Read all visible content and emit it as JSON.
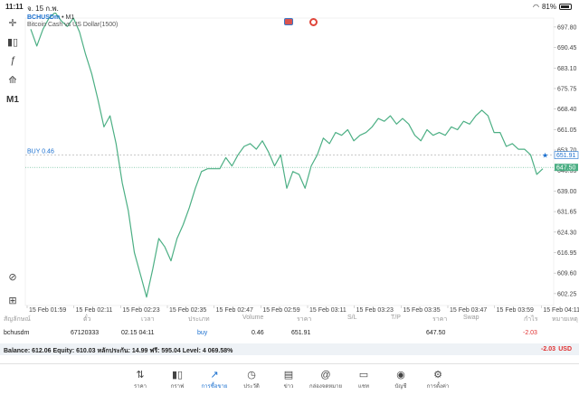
{
  "status_bar": {
    "time": "11:11",
    "date": "จ. 15 ก.พ.",
    "battery": "81%"
  },
  "toolbar": {
    "timeframe": "M1"
  },
  "chart": {
    "symbol": "BCHUSDm",
    "timeframe": "M1",
    "description": "Bitcoin Cash vs US Dollar(1500)",
    "buy_label": "BUY 0.46",
    "current_price_tag": "647.50",
    "order_price_tag": "651.91",
    "colors": {
      "line": "#4caf84",
      "buy_line": "#999999",
      "accent": "#1a6fcf"
    }
  },
  "chart_data": {
    "type": "line",
    "ylim": [
      598.0,
      701.0
    ],
    "y_ticks": [
      "697.80",
      "690.45",
      "683.10",
      "675.75",
      "668.40",
      "661.05",
      "653.70",
      "646.35",
      "639.00",
      "631.65",
      "624.30",
      "616.95",
      "609.60",
      "602.25"
    ],
    "x_ticks": [
      "15 Feb 01:59",
      "15 Feb 02:11",
      "15 Feb 02:23",
      "15 Feb 02:35",
      "15 Feb 02:47",
      "15 Feb 02:59",
      "15 Feb 03:11",
      "15 Feb 03:23",
      "15 Feb 03:35",
      "15 Feb 03:47",
      "15 Feb 03:59",
      "15 Feb 04:11"
    ],
    "y_values": [
      697,
      691,
      697,
      701,
      703,
      700,
      698,
      701,
      696,
      688,
      681,
      672,
      662,
      666,
      656,
      642,
      632,
      617,
      609,
      601,
      611,
      622,
      619,
      614,
      622,
      627,
      633,
      640,
      646,
      647,
      647,
      647,
      651,
      648,
      652,
      655,
      656,
      654,
      657,
      653,
      648,
      652,
      640,
      646,
      645,
      640,
      648,
      652,
      658,
      656,
      660,
      659,
      661,
      657,
      659,
      660,
      662,
      665,
      664,
      666,
      663,
      665,
      663,
      659,
      657,
      661,
      659,
      660,
      659,
      662,
      661,
      664,
      663,
      666,
      668,
      666,
      660,
      660,
      655,
      656,
      654,
      654,
      652,
      645,
      647
    ],
    "buy_level": 651.91,
    "current_level": 647.5
  },
  "trade_table": {
    "headers": [
      "สัญลักษณ์",
      "ตั๋ว",
      "เวลา",
      "ประเภท",
      "Volume",
      "ราคา",
      "S/L",
      "T/P",
      "ราคา",
      "Swap",
      "กำไร",
      "หมายเหตุ"
    ],
    "row": {
      "symbol": "bchusdm",
      "ticket": "67120333",
      "time": "02.15 04:11",
      "type": "buy",
      "volume": "0.46",
      "price": "651.91",
      "current": "647.50",
      "profit": "-2.03"
    }
  },
  "balance": {
    "text": "Balance: 612.06 Equity: 610.03 หลักประกัน: 14.99 ฟรี: 595.04 Level: 4 069.58%",
    "value": "-2.03",
    "currency": "USD"
  },
  "nav": [
    {
      "label": "ราคา",
      "icon": "arrows-updown-icon",
      "glyph": "⇅"
    },
    {
      "label": "กราฟ",
      "icon": "candles-icon",
      "glyph": "▮▯"
    },
    {
      "label": "การซื้อขาย",
      "icon": "trade-chart-icon",
      "glyph": "↗"
    },
    {
      "label": "ประวัติ",
      "icon": "history-icon",
      "glyph": "◷"
    },
    {
      "label": "ข่าว",
      "icon": "news-icon",
      "glyph": "▤"
    },
    {
      "label": "กล่องจดหมาย",
      "icon": "mailbox-icon",
      "glyph": "@"
    },
    {
      "label": "แชท",
      "icon": "chat-icon",
      "glyph": "▭"
    },
    {
      "label": "บัญชี",
      "icon": "account-icon",
      "glyph": "◉"
    },
    {
      "label": "การตั้งค่า",
      "icon": "settings-icon",
      "glyph": "⚙"
    }
  ]
}
